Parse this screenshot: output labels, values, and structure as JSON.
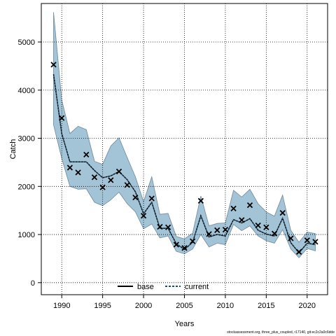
{
  "chart_data": {
    "type": "line",
    "xlabel": "Years",
    "ylabel": "Catch",
    "xlim": [
      1987.5,
      2022.5
    ],
    "ylim": [
      -250,
      5800
    ],
    "xticks": [
      1990,
      1995,
      2000,
      2005,
      2010,
      2015,
      2020
    ],
    "yticks": [
      0,
      1000,
      2000,
      3000,
      4000,
      5000
    ],
    "grid": true,
    "legend_position": "bottom-center",
    "colors": {
      "band": "#a3c3d6",
      "band_edge": "#6f8a9a",
      "current": "#1f4e6b",
      "base": "#000000",
      "grid": "#000000"
    },
    "years": [
      1989,
      1990,
      1991,
      1992,
      1993,
      1994,
      1995,
      1996,
      1997,
      1998,
      1999,
      2000,
      2001,
      2002,
      2003,
      2004,
      2005,
      2006,
      2007,
      2008,
      2009,
      2010,
      2011,
      2012,
      2013,
      2014,
      2015,
      2016,
      2017,
      2018,
      2019,
      2020,
      2021
    ],
    "observed": [
      4530,
      3420,
      2390,
      2290,
      2660,
      2190,
      1980,
      2130,
      2310,
      2030,
      1770,
      1390,
      1750,
      1160,
      1150,
      790,
      720,
      860,
      1700,
      1010,
      1090,
      1100,
      1540,
      1300,
      1610,
      1190,
      1150,
      1020,
      1450,
      920,
      640,
      880,
      850
    ],
    "current": [
      4330,
      3100,
      2510,
      2510,
      2510,
      2330,
      2180,
      2220,
      2310,
      2140,
      1890,
      1430,
      1670,
      1130,
      1130,
      810,
      690,
      840,
      1390,
      950,
      1000,
      970,
      1310,
      1240,
      1330,
      1090,
      1010,
      970,
      1340,
      830,
      620,
      820,
      790
    ],
    "upper": [
      5620,
      3800,
      3100,
      3250,
      3180,
      2520,
      2460,
      2840,
      3010,
      2600,
      2200,
      1680,
      2200,
      1420,
      1440,
      960,
      910,
      1030,
      1800,
      1180,
      1230,
      1240,
      1920,
      1780,
      1940,
      1640,
      1470,
      1380,
      1820,
      1090,
      840,
      1050,
      1020
    ],
    "lower": [
      3280,
      2580,
      2000,
      1940,
      1950,
      1670,
      1600,
      1720,
      1880,
      1640,
      1470,
      1120,
      1220,
      930,
      970,
      650,
      600,
      700,
      1000,
      740,
      820,
      790,
      1210,
      1080,
      1180,
      970,
      870,
      820,
      1100,
      700,
      520,
      710,
      660
    ],
    "series": [
      {
        "name": "base",
        "style": "solid"
      },
      {
        "name": "current",
        "style": "dashed"
      }
    ]
  },
  "footnote": "stockassessment.org, three_plus_coupled, r17140, git:ec2c2a0c6dde"
}
